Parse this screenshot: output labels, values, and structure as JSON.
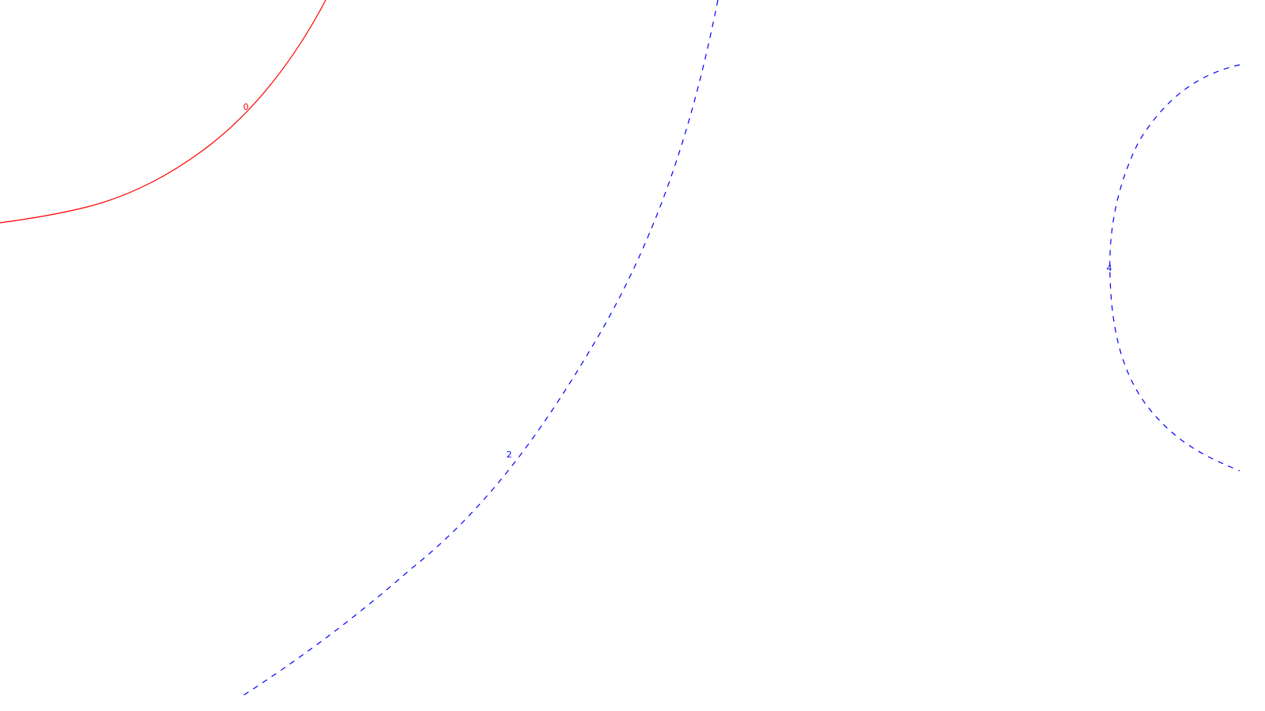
{
  "chart_data": {
    "type": "contour",
    "grid": false,
    "legend": "none",
    "contours": [
      {
        "level": "0",
        "color": "#ff0000",
        "linestyle": "solid"
      },
      {
        "level": "2",
        "color": "#0000ff",
        "linestyle": "dashed"
      },
      {
        "level": "4",
        "color": "#0000ff",
        "linestyle": "dashed"
      }
    ]
  }
}
